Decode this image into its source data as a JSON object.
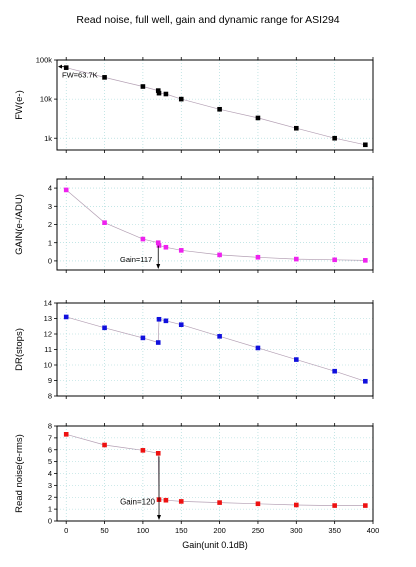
{
  "title": "Read noise, full well, gain and dynamic range for ASI294",
  "colors": {
    "fw": "#000000",
    "gain": "#ee22ee",
    "dr": "#1010dd",
    "noise": "#ee1111",
    "grid": "#9fd6d6",
    "fit_line": "#b4a0b4"
  },
  "chart_data": [
    {
      "type": "scatter",
      "panel": "fw",
      "ylabel": "FW(e-)",
      "yscale": "log",
      "ylim": [
        500,
        100000
      ],
      "yticks": [
        1000,
        10000,
        100000
      ],
      "yticklabels": [
        "1k",
        "10k",
        "100k"
      ],
      "xlim": [
        -12,
        400
      ],
      "x": [
        0,
        50,
        100,
        120,
        121,
        130,
        150,
        200,
        250,
        300,
        350,
        390
      ],
      "y": [
        63700,
        36000,
        21000,
        16500,
        14200,
        13500,
        10000,
        5500,
        3300,
        1800,
        1000,
        680
      ],
      "annotation": {
        "text": "FW=63.7K",
        "x": 0,
        "y": 63700
      },
      "legend": "none",
      "grid": true
    },
    {
      "type": "scatter",
      "panel": "gain",
      "ylabel": "GAIN(e-/ADU)",
      "ylim": [
        -0.5,
        4.5
      ],
      "yticks": [
        0,
        1,
        2,
        3,
        4
      ],
      "xlim": [
        -12,
        400
      ],
      "x": [
        0,
        50,
        100,
        120,
        121,
        130,
        150,
        200,
        250,
        300,
        350,
        390
      ],
      "y": [
        3.9,
        2.1,
        1.2,
        1.0,
        0.85,
        0.75,
        0.58,
        0.33,
        0.2,
        0.1,
        0.06,
        0.03
      ],
      "annotation": {
        "text": "Gain=117",
        "x": 120,
        "y": 1.0
      },
      "legend": "none",
      "grid": true
    },
    {
      "type": "scatter",
      "panel": "dr",
      "ylabel": "DR(stops)",
      "ylim": [
        8,
        14
      ],
      "yticks": [
        8,
        9,
        10,
        11,
        12,
        13,
        14
      ],
      "xlim": [
        -12,
        400
      ],
      "x": [
        0,
        50,
        100,
        120,
        121,
        130,
        150,
        200,
        250,
        300,
        350,
        390
      ],
      "y": [
        13.1,
        12.4,
        11.75,
        11.45,
        12.95,
        12.85,
        12.6,
        11.85,
        11.1,
        10.35,
        9.6,
        8.95
      ],
      "legend": "none",
      "grid": true
    },
    {
      "type": "scatter",
      "panel": "noise",
      "ylabel": "Read noise(e-rms)",
      "xlabel": "Gain(unit 0.1dB)",
      "ylim": [
        0,
        8
      ],
      "yticks": [
        0,
        1,
        2,
        3,
        4,
        5,
        6,
        7,
        8
      ],
      "xlim": [
        -12,
        400
      ],
      "xticks": [
        0,
        50,
        100,
        150,
        200,
        250,
        300,
        350,
        400
      ],
      "x": [
        0,
        50,
        100,
        120,
        121,
        130,
        150,
        200,
        250,
        300,
        350,
        390
      ],
      "y": [
        7.3,
        6.4,
        5.95,
        5.7,
        1.8,
        1.75,
        1.65,
        1.55,
        1.45,
        1.35,
        1.3,
        1.3
      ],
      "annotation": {
        "text": "Gain=120",
        "x": 121,
        "y": 1.8
      },
      "legend": "none",
      "grid": true
    }
  ]
}
